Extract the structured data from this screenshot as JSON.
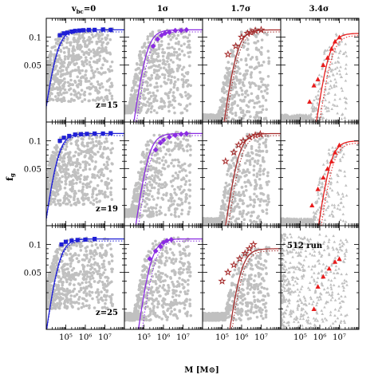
{
  "figure": {
    "column_titles": [
      "vₐₑ=0",
      "1σ",
      "1.7σ",
      "3.4σ"
    ],
    "column_title_main": [
      "v",
      "1σ",
      "1.7σ",
      "3.4σ"
    ],
    "column_title_sub": "bc",
    "column_title_suffix": "=0",
    "ylabel_main": "f",
    "ylabel_sub": "g",
    "xlabel": "M [M⊙]",
    "row_labels": [
      "z=15",
      "z=19",
      "z=25"
    ],
    "panel_note": "512 run",
    "ytick_labels": [
      "0.1",
      "0.05"
    ],
    "xtick_labels": [
      "10⁵",
      "10⁶",
      "10⁷"
    ]
  },
  "chart_data": {
    "type": "scatter",
    "grid": false,
    "x_scale": "log",
    "y_scale": "log",
    "xlim": [
      10000,
      100000000
    ],
    "ylim": [
      0.012,
      0.16
    ],
    "colors": {
      "scatter_gray": "#c0c0c0",
      "col0": "#1f1fd6",
      "col1": "#8a2be2",
      "col2": "#a52a2a",
      "col3": "#e81b1b"
    },
    "columns_vbc": [
      "0",
      "1σ",
      "1.7σ",
      "3.4σ"
    ],
    "rows_z": [
      15,
      19,
      25
    ],
    "panels": [
      {
        "row": 0,
        "col": 0,
        "gray_lo": 0.02,
        "fit_max": 0.12,
        "fit_mhalf": 30000,
        "fit_dotted_mhalf": 30000,
        "marker": "square",
        "points": [
          [
            50000,
            0.105
          ],
          [
            80000,
            0.11
          ],
          [
            120000,
            0.112
          ],
          [
            200000,
            0.115
          ],
          [
            300000,
            0.117
          ],
          [
            500000,
            0.118
          ],
          [
            800000,
            0.119
          ],
          [
            1500000,
            0.12
          ],
          [
            3000000,
            0.12
          ],
          [
            8000000,
            0.121
          ],
          [
            20000000,
            0.12
          ]
        ]
      },
      {
        "row": 0,
        "col": 1,
        "gray_lo": 0.015,
        "fit_max": 0.12,
        "fit_mhalf": 120000,
        "fit_dotted_mhalf": 160000,
        "marker": "diamond",
        "points": [
          [
            300000,
            0.08
          ],
          [
            500000,
            0.095
          ],
          [
            800000,
            0.105
          ],
          [
            1200000,
            0.11
          ],
          [
            2000000,
            0.113
          ],
          [
            4000000,
            0.118
          ],
          [
            8000000,
            0.118
          ],
          [
            15000000,
            0.12
          ]
        ]
      },
      {
        "row": 0,
        "col": 2,
        "gray_lo": 0.012,
        "fit_max": 0.12,
        "fit_mhalf": 500000,
        "fit_dotted_mhalf": 600000,
        "marker": "star",
        "points": [
          [
            200000,
            0.065
          ],
          [
            500000,
            0.08
          ],
          [
            1000000,
            0.1
          ],
          [
            2000000,
            0.11
          ],
          [
            3000000,
            0.113
          ],
          [
            5000000,
            0.118
          ],
          [
            10000000,
            0.12
          ]
        ]
      },
      {
        "row": 0,
        "col": 3,
        "gray_lo": 0.012,
        "fit_max": 0.11,
        "fit_mhalf": 2500000,
        "fit_dotted_mhalf": 3500000,
        "marker": "triangle",
        "points": [
          [
            300000,
            0.02
          ],
          [
            500000,
            0.03
          ],
          [
            800000,
            0.035
          ],
          [
            1500000,
            0.05
          ],
          [
            2500000,
            0.06
          ],
          [
            4000000,
            0.075
          ],
          [
            6000000,
            0.09
          ],
          [
            10000000,
            0.1
          ]
        ]
      },
      {
        "row": 1,
        "col": 0,
        "gray_lo": 0.02,
        "fit_max": 0.12,
        "fit_mhalf": 35000,
        "fit_dotted_mhalf": 35000,
        "marker": "square",
        "points": [
          [
            50000,
            0.1
          ],
          [
            80000,
            0.108
          ],
          [
            150000,
            0.113
          ],
          [
            300000,
            0.117
          ],
          [
            600000,
            0.118
          ],
          [
            1200000,
            0.119
          ],
          [
            3000000,
            0.12
          ],
          [
            8000000,
            0.12
          ],
          [
            20000000,
            0.121
          ]
        ]
      },
      {
        "row": 1,
        "col": 1,
        "gray_lo": 0.015,
        "fit_max": 0.12,
        "fit_mhalf": 150000,
        "fit_dotted_mhalf": 200000,
        "marker": "diamond",
        "points": [
          [
            400000,
            0.08
          ],
          [
            700000,
            0.095
          ],
          [
            1000000,
            0.102
          ],
          [
            2000000,
            0.11
          ],
          [
            4000000,
            0.115
          ],
          [
            8000000,
            0.118
          ],
          [
            15000000,
            0.12
          ]
        ]
      },
      {
        "row": 1,
        "col": 2,
        "gray_lo": 0.012,
        "fit_max": 0.12,
        "fit_mhalf": 600000,
        "fit_dotted_mhalf": 800000,
        "marker": "star",
        "points": [
          [
            150000,
            0.06
          ],
          [
            400000,
            0.075
          ],
          [
            700000,
            0.09
          ],
          [
            1200000,
            0.1
          ],
          [
            2500000,
            0.11
          ],
          [
            5000000,
            0.115
          ],
          [
            9000000,
            0.118
          ]
        ]
      },
      {
        "row": 1,
        "col": 3,
        "gray_lo": 0.012,
        "fit_max": 0.1,
        "fit_mhalf": 3000000,
        "fit_dotted_mhalf": 4000000,
        "marker": "triangle",
        "points": [
          [
            400000,
            0.02
          ],
          [
            800000,
            0.03
          ],
          [
            1500000,
            0.04
          ],
          [
            2500000,
            0.05
          ],
          [
            4000000,
            0.06
          ],
          [
            6000000,
            0.075
          ],
          [
            10000000,
            0.09
          ]
        ]
      },
      {
        "row": 2,
        "col": 0,
        "gray_lo": 0.02,
        "fit_max": 0.115,
        "fit_mhalf": 40000,
        "fit_dotted_mhalf": 40000,
        "marker": "square",
        "points": [
          [
            60000,
            0.1
          ],
          [
            100000,
            0.107
          ],
          [
            200000,
            0.11
          ],
          [
            400000,
            0.112
          ],
          [
            1000000,
            0.113
          ],
          [
            3000000,
            0.115
          ]
        ]
      },
      {
        "row": 2,
        "col": 1,
        "gray_lo": 0.015,
        "fit_max": 0.115,
        "fit_mhalf": 200000,
        "fit_dotted_mhalf": 300000,
        "marker": "diamond",
        "points": [
          [
            200000,
            0.07
          ],
          [
            400000,
            0.085
          ],
          [
            700000,
            0.095
          ],
          [
            1000000,
            0.105
          ],
          [
            1500000,
            0.11
          ],
          [
            2500000,
            0.113
          ]
        ]
      },
      {
        "row": 2,
        "col": 2,
        "gray_lo": 0.015,
        "fit_max": 0.09,
        "fit_mhalf": 800000,
        "fit_dotted_mhalf": 1000000,
        "marker": "star",
        "points": [
          [
            100000,
            0.04
          ],
          [
            200000,
            0.05
          ],
          [
            400000,
            0.06
          ],
          [
            800000,
            0.07
          ],
          [
            1500000,
            0.08
          ],
          [
            2500000,
            0.09
          ],
          [
            4000000,
            0.1
          ]
        ]
      },
      {
        "row": 2,
        "col": 3,
        "gray_lo": 0.012,
        "fit_max": null,
        "fit_mhalf": null,
        "fit_dotted_mhalf": null,
        "marker": "triangle",
        "points": [
          [
            500000,
            0.02
          ],
          [
            800000,
            0.035
          ],
          [
            1500000,
            0.045
          ],
          [
            3000000,
            0.055
          ],
          [
            6000000,
            0.065
          ],
          [
            10000000,
            0.07
          ]
        ]
      }
    ]
  }
}
